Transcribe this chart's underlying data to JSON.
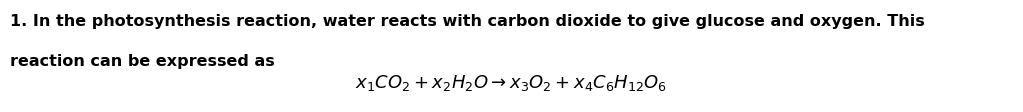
{
  "bg_color": "#ffffff",
  "text_color": "#000000",
  "line1": "1. In the photosynthesis reaction, water reacts with carbon dioxide to give glucose and oxygen. This",
  "line2": "reaction can be expressed as",
  "formula": "$x_1CO_2 + x_2H_2O \\rightarrow x_3O_2 + x_4C_6H_{12}O_6$",
  "font_size_text": 11.5,
  "font_size_formula": 13.0,
  "font_family": "DejaVu Sans"
}
